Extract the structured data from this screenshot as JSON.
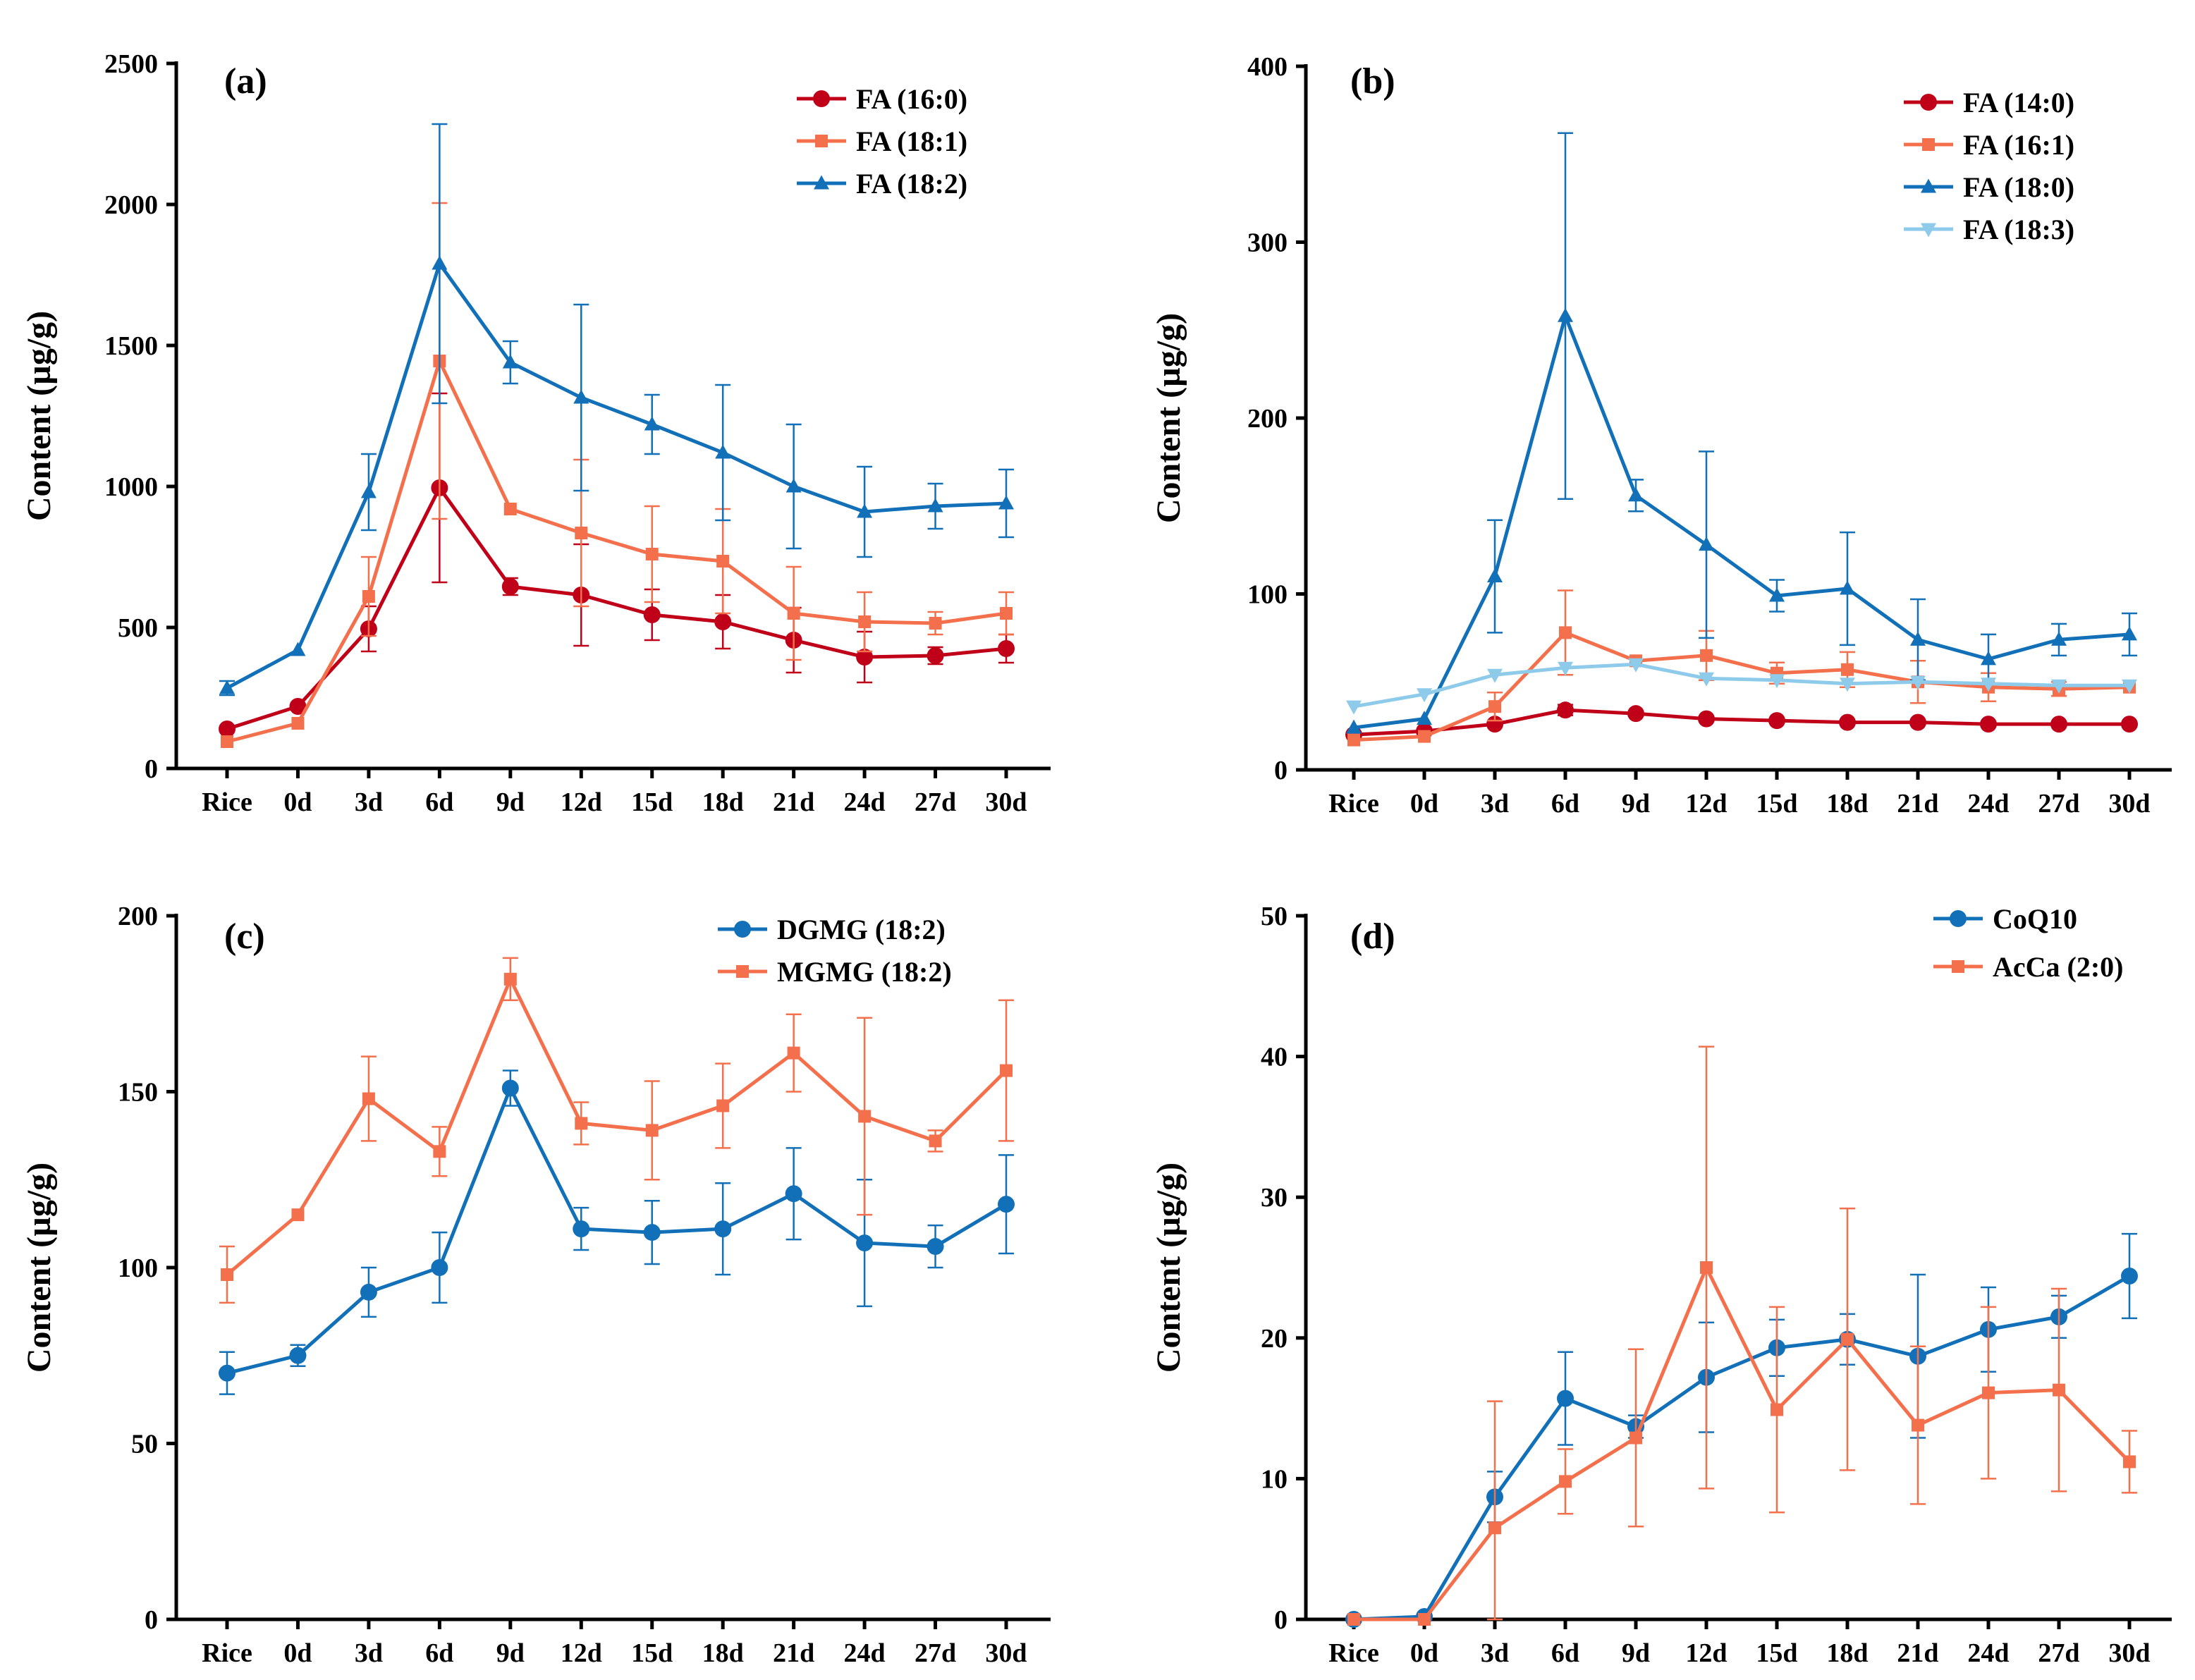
{
  "chart_data": [
    {
      "type": "line",
      "label": "(a)",
      "ylabel": "Content (µg/g)",
      "xlabel": "",
      "categories": [
        "Rice",
        "0d",
        "3d",
        "6d",
        "9d",
        "12d",
        "15d",
        "18d",
        "21d",
        "24d",
        "27d",
        "30d"
      ],
      "ylim": [
        0,
        2500
      ],
      "yticks": [
        0,
        500,
        1000,
        1500,
        2000,
        2500
      ],
      "legend_position": "top-right",
      "series": [
        {
          "name": "FA (16:0)",
          "color": "#c00018",
          "marker": "circle",
          "values": [
            140,
            220,
            495,
            995,
            645,
            615,
            545,
            520,
            455,
            395,
            400,
            425
          ],
          "errors": [
            0,
            0,
            80,
            335,
            30,
            180,
            90,
            95,
            115,
            90,
            30,
            50
          ]
        },
        {
          "name": "FA (18:1)",
          "color": "#f4704c",
          "marker": "square",
          "values": [
            95,
            160,
            610,
            1445,
            920,
            835,
            760,
            735,
            550,
            520,
            515,
            550
          ],
          "errors": [
            0,
            0,
            140,
            560,
            0,
            260,
            170,
            185,
            165,
            105,
            40,
            75
          ]
        },
        {
          "name": "FA (18:2)",
          "color": "#1170b7",
          "marker": "triangle",
          "values": [
            285,
            420,
            980,
            1790,
            1440,
            1315,
            1220,
            1120,
            1000,
            910,
            930,
            940
          ],
          "errors": [
            25,
            0,
            135,
            495,
            75,
            330,
            105,
            240,
            220,
            160,
            80,
            120
          ]
        }
      ]
    },
    {
      "type": "line",
      "label": "(b)",
      "ylabel": "Content (µg/g)",
      "xlabel": "",
      "categories": [
        "Rice",
        "0d",
        "3d",
        "6d",
        "9d",
        "12d",
        "15d",
        "18d",
        "21d",
        "24d",
        "27d",
        "30d"
      ],
      "ylim": [
        0,
        400
      ],
      "yticks": [
        0,
        100,
        200,
        300,
        400
      ],
      "legend_position": "top-right",
      "series": [
        {
          "name": "FA (14:0)",
          "color": "#c00018",
          "marker": "circle",
          "values": [
            20,
            22,
            26,
            34,
            32,
            29,
            28,
            27,
            27,
            26,
            26,
            26
          ],
          "errors": [
            0,
            0,
            0,
            3,
            0,
            0,
            0,
            0,
            0,
            0,
            0,
            0
          ]
        },
        {
          "name": "FA (16:1)",
          "color": "#f4704c",
          "marker": "square",
          "values": [
            17,
            19,
            36,
            78,
            62,
            65,
            55,
            57,
            50,
            47,
            46,
            47
          ],
          "errors": [
            0,
            0,
            8,
            24,
            0,
            14,
            6,
            10,
            12,
            8,
            4,
            0
          ]
        },
        {
          "name": "FA (18:0)",
          "color": "#1170b7",
          "marker": "triangle",
          "values": [
            24,
            29,
            110,
            258,
            156,
            128,
            99,
            103,
            74,
            63,
            74,
            77
          ],
          "errors": [
            0,
            0,
            32,
            104,
            9,
            53,
            9,
            32,
            23,
            14,
            9,
            12
          ]
        },
        {
          "name": "FA (18:3)",
          "color": "#8ecbea",
          "marker": "triangle-down",
          "values": [
            36,
            43,
            54,
            58,
            60,
            52,
            51,
            49,
            50,
            49,
            48,
            48
          ],
          "errors": [
            0,
            0,
            0,
            0,
            0,
            0,
            0,
            0,
            0,
            0,
            0,
            0
          ]
        }
      ]
    },
    {
      "type": "line",
      "label": "(c)",
      "ylabel": "Content (µg/g)",
      "xlabel": "",
      "categories": [
        "Rice",
        "0d",
        "3d",
        "6d",
        "9d",
        "12d",
        "15d",
        "18d",
        "21d",
        "24d",
        "27d",
        "30d"
      ],
      "ylim": [
        0,
        200
      ],
      "yticks": [
        0,
        50,
        100,
        150,
        200
      ],
      "legend_position": "top-right",
      "series": [
        {
          "name": "DGMG (18:2)",
          "color": "#1170b7",
          "marker": "circle",
          "values": [
            70,
            75,
            93,
            100,
            151,
            111,
            110,
            111,
            121,
            107,
            106,
            118
          ],
          "errors": [
            6,
            3,
            7,
            10,
            5,
            6,
            9,
            13,
            13,
            18,
            6,
            14
          ]
        },
        {
          "name": "MGMG (18:2)",
          "color": "#f4704c",
          "marker": "square",
          "values": [
            98,
            115,
            148,
            133,
            182,
            141,
            139,
            146,
            161,
            143,
            136,
            156
          ],
          "errors": [
            8,
            0,
            12,
            7,
            6,
            6,
            14,
            12,
            11,
            28,
            3,
            20
          ]
        }
      ]
    },
    {
      "type": "line",
      "label": "(d)",
      "ylabel": "Content (µg/g)",
      "xlabel": "",
      "categories": [
        "Rice",
        "0d",
        "3d",
        "6d",
        "9d",
        "12d",
        "15d",
        "18d",
        "21d",
        "24d",
        "27d",
        "30d"
      ],
      "ylim": [
        0,
        50
      ],
      "yticks": [
        0,
        10,
        20,
        30,
        40,
        50
      ],
      "legend_position": "top-right",
      "series": [
        {
          "name": "CoQ10",
          "color": "#1170b7",
          "marker": "circle",
          "values": [
            0,
            0.2,
            8.7,
            15.7,
            13.7,
            17.2,
            19.3,
            19.9,
            18.7,
            20.6,
            21.5,
            24.4
          ],
          "errors": [
            0,
            0,
            1.8,
            3.3,
            0.8,
            3.9,
            2.0,
            1.8,
            5.8,
            3.0,
            1.5,
            3.0
          ]
        },
        {
          "name": "AcCa (2:0)",
          "color": "#f4704c",
          "marker": "square",
          "values": [
            0,
            0,
            6.5,
            9.8,
            12.9,
            25.0,
            14.9,
            19.9,
            13.8,
            16.1,
            16.3,
            11.2
          ],
          "errors": [
            0,
            0,
            9.0,
            2.3,
            6.3,
            15.7,
            7.3,
            9.3,
            5.6,
            6.1,
            7.2,
            2.2
          ]
        }
      ]
    }
  ]
}
